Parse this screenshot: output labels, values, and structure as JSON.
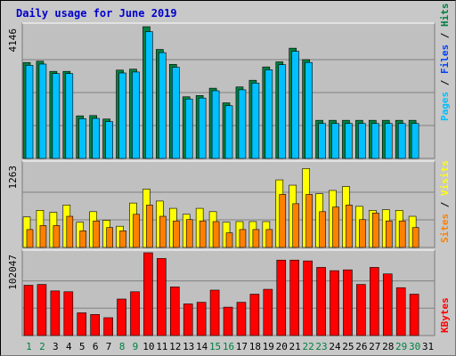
{
  "title": "Daily usage for June 2019",
  "colors": {
    "hits": "#008040",
    "files": "#0040ff",
    "pages": "#00c0ff",
    "visits": "#ffff00",
    "sites": "#ff8000",
    "kbytes": "#ff0000",
    "weekend": "#008040",
    "weekday": "#000000"
  },
  "chart_data": [
    {
      "type": "bar",
      "name": "hits-files-pages",
      "categories": [
        "1",
        "2",
        "3",
        "4",
        "5",
        "6",
        "7",
        "8",
        "9",
        "10",
        "11",
        "12",
        "13",
        "14",
        "15",
        "16",
        "17",
        "18",
        "19",
        "20",
        "21",
        "22",
        "23",
        "24",
        "25",
        "26",
        "27",
        "28",
        "29",
        "30",
        "31"
      ],
      "weekend_days": [
        "1",
        "2",
        "8",
        "9",
        "15",
        "16",
        "22",
        "23",
        "29",
        "30"
      ],
      "ymax_label": "4146",
      "ylim": [
        0,
        4146
      ],
      "series": [
        {
          "name": "Hits",
          "values": [
            3020,
            3060,
            2740,
            2740,
            1340,
            1350,
            1240,
            2780,
            2810,
            4146,
            3430,
            2960,
            1940,
            1980,
            2210,
            1750,
            2250,
            2460,
            2880,
            3040,
            3470,
            3110,
            1200,
            1200,
            1200,
            1200,
            1200,
            1200,
            1200,
            1200,
            0
          ]
        },
        {
          "name": "Files",
          "values": [
            0,
            0,
            0,
            0,
            0,
            0,
            0,
            0,
            0,
            0,
            0,
            0,
            0,
            0,
            0,
            0,
            0,
            0,
            0,
            0,
            0,
            0,
            0,
            0,
            0,
            0,
            0,
            0,
            0,
            0,
            0
          ]
        },
        {
          "name": "Pages",
          "values": [
            2930,
            2970,
            2670,
            2670,
            1250,
            1260,
            1160,
            2690,
            2720,
            3990,
            3330,
            2870,
            1870,
            1900,
            2130,
            1660,
            2160,
            2370,
            2790,
            2950,
            3370,
            3020,
            1100,
            1100,
            1100,
            1100,
            1100,
            1100,
            1100,
            1100,
            0
          ]
        }
      ],
      "legend_right": [
        "Pages",
        "Files",
        "Hits"
      ]
    },
    {
      "type": "bar",
      "name": "visits-sites",
      "ymax_label": "1263",
      "ylim": [
        0,
        1263
      ],
      "series": [
        {
          "name": "Visits",
          "values": [
            460,
            560,
            530,
            640,
            380,
            540,
            410,
            320,
            670,
            880,
            700,
            590,
            500,
            590,
            540,
            380,
            390,
            390,
            390,
            1020,
            940,
            1190,
            810,
            860,
            920,
            620,
            560,
            570,
            560,
            470,
            0
          ]
        },
        {
          "name": "Sites",
          "values": [
            270,
            330,
            330,
            470,
            250,
            400,
            300,
            250,
            500,
            640,
            470,
            400,
            420,
            400,
            390,
            220,
            270,
            270,
            270,
            800,
            660,
            800,
            540,
            610,
            640,
            420,
            520,
            400,
            400,
            300,
            0
          ]
        }
      ],
      "legend_right": [
        "Sites",
        "Visits"
      ]
    },
    {
      "type": "bar",
      "name": "kbytes",
      "ymax_label": "102047",
      "ylim": [
        0,
        102047
      ],
      "series": [
        {
          "name": "KBytes",
          "values": [
            62000,
            63000,
            55000,
            54000,
            28000,
            26000,
            22000,
            45000,
            54000,
            102047,
            95000,
            60000,
            39000,
            41000,
            56000,
            35000,
            41000,
            51000,
            57000,
            93000,
            93000,
            92000,
            84000,
            80000,
            81000,
            63000,
            84000,
            76000,
            59000,
            51000,
            0
          ]
        }
      ],
      "legend_right": [
        "KBytes"
      ]
    }
  ]
}
